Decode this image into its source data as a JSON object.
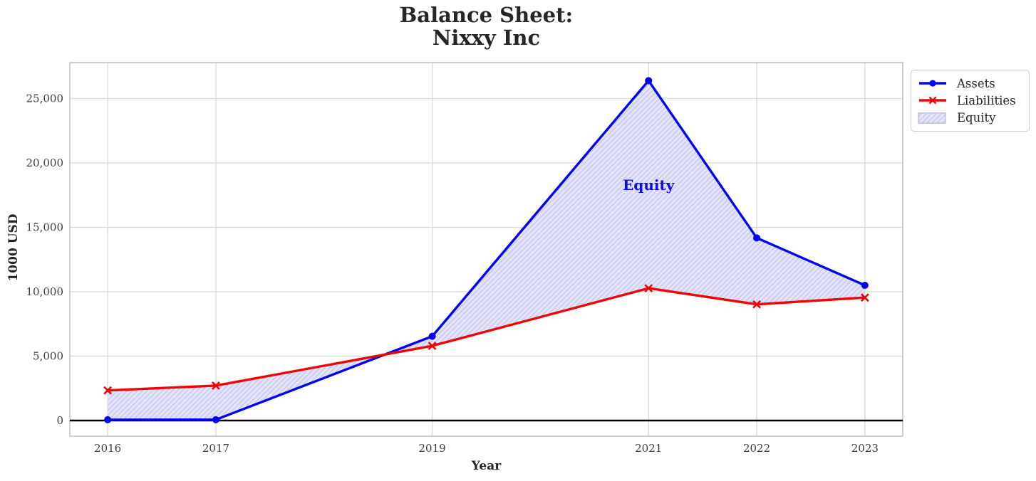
{
  "title": {
    "line1": "Balance Sheet:",
    "line2": "Nixxy Inc"
  },
  "chart_data": {
    "type": "line",
    "title": "Balance Sheet: Nixxy Inc",
    "xlabel": "Year",
    "ylabel": "1000 USD",
    "x": [
      2016,
      2017,
      2019,
      2021,
      2022,
      2023
    ],
    "series": [
      {
        "name": "Assets",
        "color": "#0202ee",
        "marker": "circle",
        "values": [
          60,
          65,
          6540,
          26390,
          14180,
          10500
        ]
      },
      {
        "name": "Liabilities",
        "color": "#ee0606",
        "marker": "x",
        "values": [
          2340,
          2710,
          5800,
          10270,
          9020,
          9550
        ]
      }
    ],
    "fill_between": {
      "name": "Equity",
      "between": [
        "Assets",
        "Liabilities"
      ],
      "hatch": "//",
      "fill_color": "#e4e4f9",
      "hatch_color": "#c5c5f0",
      "edge_color": "#b4b4e6"
    },
    "annotation": {
      "text": "Equity",
      "x": 2021,
      "y": 18300,
      "color": "#0b0bee"
    },
    "xlim": [
      2015.65,
      2023.35
    ],
    "ylim": [
      -1215,
      27790
    ],
    "xticks": [
      2016,
      2017,
      2019,
      2021,
      2022,
      2023
    ],
    "xtick_labels": [
      "2016",
      "2017",
      "2019",
      "2021",
      "2022",
      "2023"
    ],
    "yticks": [
      0,
      5000,
      10000,
      15000,
      20000,
      25000
    ],
    "ytick_labels": [
      "0",
      "5,000",
      "10,000",
      "15,000",
      "20,000",
      "25,000"
    ],
    "grid": true,
    "zero_line": true,
    "legend": {
      "position": "upper right, outside axes",
      "entries": [
        "Assets",
        "Liabilities",
        "Equity"
      ]
    },
    "style": {
      "grid_color": "#d8d8d8",
      "spine_color": "#c4c4c4",
      "tick_label_color": "#3d3d3d",
      "zero_line_color": "#000000"
    }
  }
}
